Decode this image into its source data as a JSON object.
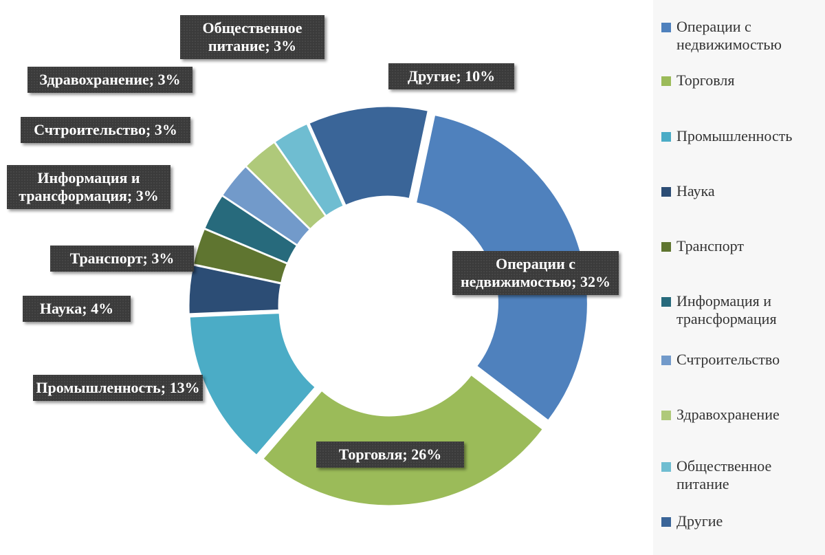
{
  "chart_data": {
    "type": "donut",
    "categories": [
      "Операции с недвижимостью",
      "Торговля",
      "Промышленность",
      "Наука",
      "Транспорт",
      "Информация и трансформация",
      "Счтроительство",
      "Здравохранение",
      "Общественное питание",
      "Другие"
    ],
    "values": [
      32,
      26,
      13,
      4,
      3,
      3,
      3,
      3,
      3,
      10
    ],
    "value_labels": [
      "Операции с недвижимостью; 32%",
      "Торговля; 26%",
      "Промышленность; 13%",
      "Наука; 4%",
      "Транспорт; 3%",
      "Информация и трансформация; 3%",
      "Счтроительство; 3%",
      "Здравохранение; 3%",
      "Общественное питание; 3%",
      "Другие; 10%"
    ],
    "colors": [
      "#4f81bd",
      "#9bbb59",
      "#4bacc6",
      "#2c4d75",
      "#5f7530",
      "#276a7c",
      "#729aca",
      "#afc97a",
      "#6fbdd1",
      "#3a6598"
    ],
    "legend": "right"
  }
}
